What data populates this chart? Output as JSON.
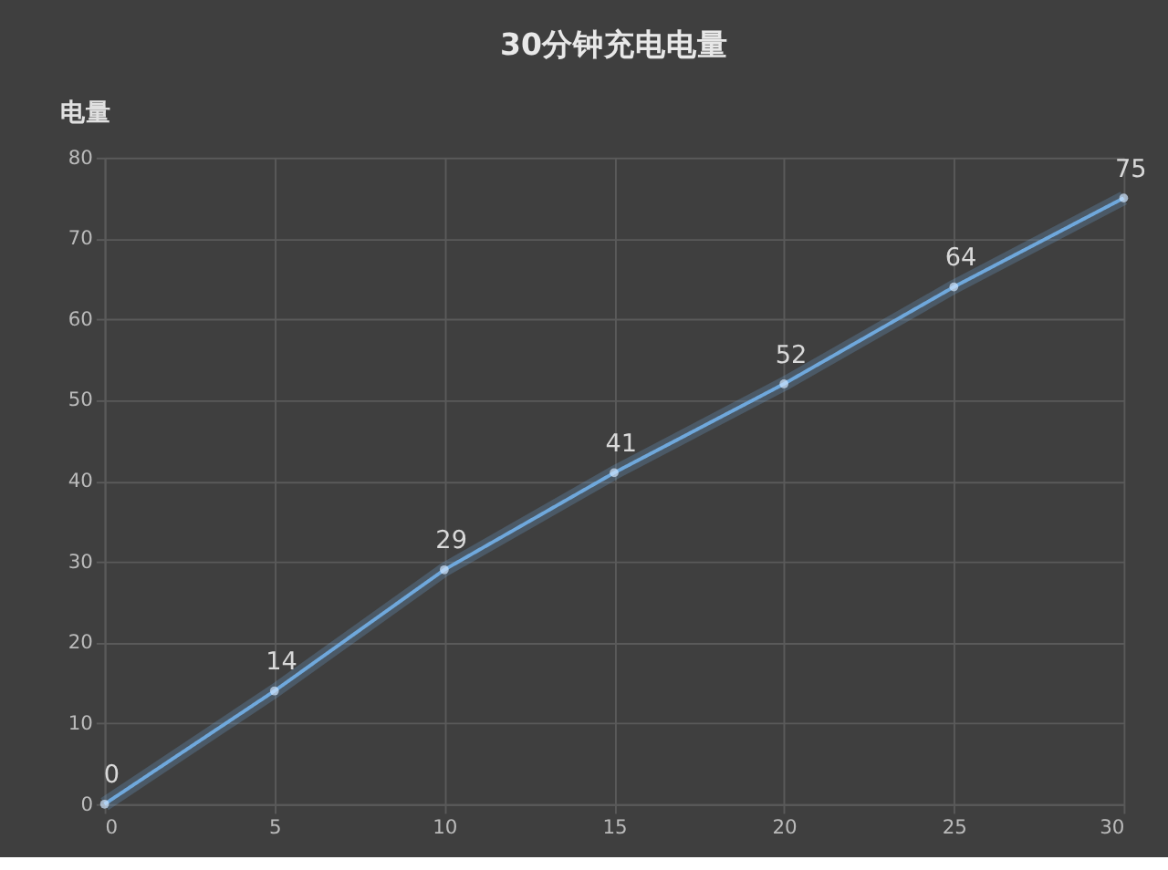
{
  "chart_data": {
    "type": "line",
    "title": "30分钟充电电量",
    "ylabel": "电量",
    "x": [
      0,
      5,
      10,
      15,
      20,
      25,
      30
    ],
    "series": [
      {
        "color": "#6fa8dc",
        "values": [
          0,
          14,
          29,
          41,
          52,
          64,
          75
        ]
      }
    ],
    "xlim": [
      0,
      30
    ],
    "xticks": [
      0,
      5,
      10,
      15,
      20,
      25,
      30
    ],
    "ylim": [
      0,
      80
    ],
    "yticks": [
      0,
      10,
      20,
      30,
      40,
      50,
      60,
      70,
      80
    ],
    "grid": true,
    "marker": "circle",
    "line_style": "solid",
    "data_labels": true,
    "legend": false
  }
}
